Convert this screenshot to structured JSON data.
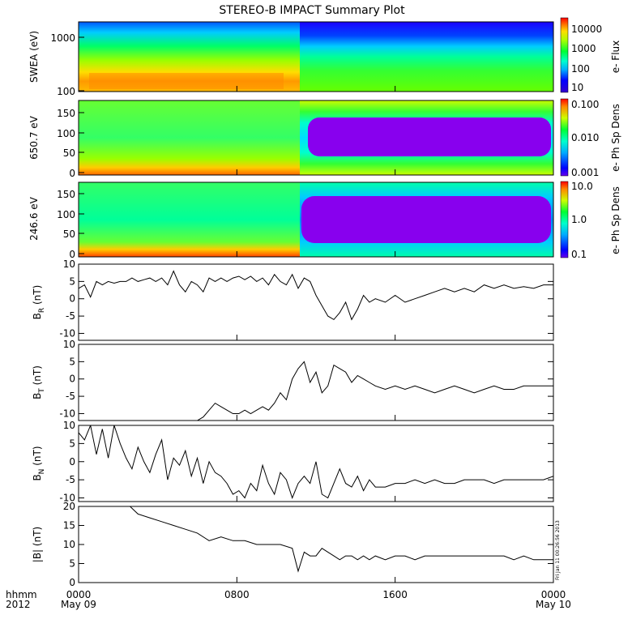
{
  "page": {
    "title": "STEREO-B IMPACT Summary Plot",
    "x_axis_row_label": "hhmm",
    "year_label": "2012",
    "stamp": "Fri Jan 11 00:26:56 2013"
  },
  "chart_data": [
    {
      "id": "swea",
      "type": "heatmap",
      "ylabel": "SWEA (eV)",
      "ytick_labels": [
        "100",
        "1000"
      ],
      "ylim": [
        100,
        2000
      ],
      "y_scale": "log",
      "colorbar": {
        "label": "e- Flux",
        "tick_labels": [
          "10",
          "100",
          "1000",
          "10000"
        ],
        "range": [
          5,
          20000
        ],
        "scale": "log"
      }
    },
    {
      "id": "pad650",
      "type": "heatmap",
      "ylabel": "650.7 eV",
      "ytick_labels": [
        "0",
        "50",
        "100",
        "150"
      ],
      "ylim": [
        0,
        180
      ],
      "colorbar": {
        "label": "e- Ph Sp Dens",
        "tick_labels": [
          "0.001",
          "0.010",
          "0.100"
        ],
        "range": [
          0.001,
          0.1
        ],
        "scale": "log"
      }
    },
    {
      "id": "pad246",
      "type": "heatmap",
      "ylabel": "246.6 eV",
      "ytick_labels": [
        "0",
        "50",
        "100",
        "150"
      ],
      "ylim": [
        0,
        180
      ],
      "colorbar": {
        "label": "e- Ph Sp Dens",
        "tick_labels": [
          "0.1",
          "1.0",
          "10.0"
        ],
        "range": [
          0.1,
          10
        ],
        "scale": "log"
      }
    },
    {
      "id": "br",
      "type": "line",
      "ylabel_main": "B",
      "ylabel_sub": "R",
      "ylabel_unit": " (nT)",
      "ylim": [
        -12,
        10
      ],
      "ytick_values": [
        -10,
        -5,
        0,
        5,
        10
      ],
      "ytick_labels": [
        "-10",
        "-5",
        "0",
        "5",
        "10"
      ],
      "x_hours": [
        0,
        0.3,
        0.6,
        0.9,
        1.2,
        1.5,
        1.8,
        2.1,
        2.4,
        2.7,
        3,
        3.3,
        3.6,
        3.9,
        4.2,
        4.5,
        4.8,
        5.1,
        5.4,
        5.7,
        6,
        6.3,
        6.6,
        6.9,
        7.2,
        7.5,
        7.8,
        8.1,
        8.4,
        8.7,
        9,
        9.3,
        9.6,
        9.9,
        10.2,
        10.5,
        10.8,
        11.1,
        11.4,
        11.7,
        12,
        12.3,
        12.6,
        12.9,
        13.2,
        13.5,
        13.8,
        14.1,
        14.4,
        14.7,
        15,
        15.5,
        16,
        16.5,
        17,
        17.5,
        18,
        18.5,
        19,
        19.5,
        20,
        20.5,
        21,
        21.5,
        22,
        22.5,
        23,
        23.5,
        24
      ],
      "values": [
        3,
        4,
        0.5,
        5,
        4,
        5,
        4.5,
        5,
        5,
        6,
        5,
        5.5,
        6,
        5,
        6,
        4,
        8,
        4,
        2,
        5,
        4,
        2,
        6,
        5,
        6,
        5,
        6,
        6.5,
        5.5,
        6.5,
        5,
        6,
        4,
        7,
        5,
        4,
        7,
        3,
        6,
        5,
        1,
        -2,
        -5,
        -6,
        -4,
        -1,
        -6,
        -3,
        1,
        -1,
        0,
        -1,
        1,
        -1,
        0,
        1,
        2,
        3,
        2,
        3,
        2,
        4,
        3,
        4,
        3,
        3.5,
        3,
        4,
        4
      ]
    },
    {
      "id": "bt",
      "type": "line",
      "ylabel_main": "B",
      "ylabel_sub": "T",
      "ylabel_unit": " (nT)",
      "ylim": [
        -12,
        10
      ],
      "ytick_values": [
        -10,
        -5,
        0,
        5,
        10
      ],
      "ytick_labels": [
        "-10",
        "-5",
        "0",
        "5",
        "10"
      ],
      "x_hours": [
        6,
        6.3,
        6.6,
        6.9,
        7.2,
        7.5,
        7.8,
        8.1,
        8.4,
        8.7,
        9,
        9.3,
        9.6,
        9.9,
        10.2,
        10.5,
        10.8,
        11.1,
        11.4,
        11.7,
        12,
        12.3,
        12.6,
        12.9,
        13.2,
        13.5,
        13.8,
        14.1,
        14.4,
        14.7,
        15,
        15.5,
        16,
        16.5,
        17,
        17.5,
        18,
        18.5,
        19,
        19.5,
        20,
        20.5,
        21,
        21.5,
        22,
        22.5,
        23,
        23.5,
        24
      ],
      "values": [
        -12,
        -11,
        -9,
        -7,
        -8,
        -9,
        -10,
        -10,
        -9,
        -10,
        -9,
        -8,
        -9,
        -7,
        -4,
        -6,
        0,
        3,
        5,
        -1,
        2,
        -4,
        -2,
        4,
        3,
        2,
        -1,
        1,
        0,
        -1,
        -2,
        -3,
        -2,
        -3,
        -2,
        -3,
        -4,
        -3,
        -2,
        -3,
        -4,
        -3,
        -2,
        -3,
        -3,
        -2,
        -2,
        -2,
        -2
      ]
    },
    {
      "id": "bn",
      "type": "line",
      "ylabel_main": "B",
      "ylabel_sub": "N",
      "ylabel_unit": " (nT)",
      "ylim": [
        -11,
        10
      ],
      "ytick_values": [
        -10,
        -5,
        0,
        5,
        10
      ],
      "ytick_labels": [
        "-10",
        "-5",
        "0",
        "5",
        "10"
      ],
      "x_hours": [
        0,
        0.3,
        0.6,
        0.9,
        1.2,
        1.5,
        1.8,
        2.1,
        2.4,
        2.7,
        3,
        3.3,
        3.6,
        3.9,
        4.2,
        4.5,
        4.8,
        5.1,
        5.4,
        5.7,
        6,
        6.3,
        6.6,
        6.9,
        7.2,
        7.5,
        7.8,
        8.1,
        8.4,
        8.7,
        9,
        9.3,
        9.6,
        9.9,
        10.2,
        10.5,
        10.8,
        11.1,
        11.4,
        11.7,
        12,
        12.3,
        12.6,
        12.9,
        13.2,
        13.5,
        13.8,
        14.1,
        14.4,
        14.7,
        15,
        15.5,
        16,
        16.5,
        17,
        17.5,
        18,
        18.5,
        19,
        19.5,
        20,
        20.5,
        21,
        21.5,
        22,
        22.5,
        23,
        23.5,
        24
      ],
      "values": [
        8,
        6,
        10,
        2,
        9,
        1,
        10,
        5,
        1,
        -2,
        4,
        0,
        -3,
        2,
        6,
        -5,
        1,
        -1,
        3,
        -4,
        1,
        -6,
        0,
        -3,
        -4,
        -6,
        -9,
        -8,
        -10,
        -6,
        -8,
        -1,
        -6,
        -9,
        -3,
        -5,
        -10,
        -6,
        -4,
        -6,
        0,
        -9,
        -10,
        -6,
        -2,
        -6,
        -7,
        -4,
        -8,
        -5,
        -7,
        -7,
        -6,
        -6,
        -5,
        -6,
        -5,
        -6,
        -6,
        -5,
        -5,
        -5,
        -6,
        -5,
        -5,
        -5,
        -5,
        -5,
        -4
      ]
    },
    {
      "id": "bmag",
      "type": "line",
      "ylabel": "|B| (nT)",
      "ylim": [
        0,
        20
      ],
      "ytick_values": [
        0,
        5,
        10,
        15,
        20
      ],
      "ytick_labels": [
        "0",
        "5",
        "10",
        "15",
        "20"
      ],
      "x_hours": [
        1,
        1.3,
        2.6,
        3,
        3.6,
        4.2,
        4.8,
        5.4,
        6,
        6.6,
        7.2,
        7.8,
        8.4,
        9,
        9.6,
        10.2,
        10.8,
        11.1,
        11.4,
        11.7,
        12,
        12.3,
        12.6,
        12.9,
        13.2,
        13.5,
        13.8,
        14.1,
        14.4,
        14.7,
        15,
        15.5,
        16,
        16.5,
        17,
        17.5,
        18,
        18.5,
        19,
        19.5,
        20,
        20.5,
        21,
        21.5,
        22,
        22.5,
        23,
        23.5,
        24
      ],
      "values": [
        20,
        20,
        20,
        18,
        17,
        16,
        15,
        14,
        13,
        11,
        12,
        11,
        11,
        10,
        10,
        10,
        9,
        3,
        8,
        7,
        7,
        9,
        8,
        7,
        6,
        7,
        7,
        6,
        7,
        6,
        7,
        6,
        7,
        7,
        6,
        7,
        7,
        7,
        7,
        7,
        7,
        7,
        7,
        7,
        6,
        7,
        6,
        6,
        6
      ]
    }
  ],
  "x_axis": {
    "hours_range": [
      0,
      24
    ],
    "tick_hours": [
      0,
      8,
      16,
      24
    ],
    "tick_labels": [
      "0000",
      "0800",
      "1600",
      "0000"
    ],
    "date_labels": [
      "May 09",
      "",
      "",
      "May 10"
    ]
  }
}
